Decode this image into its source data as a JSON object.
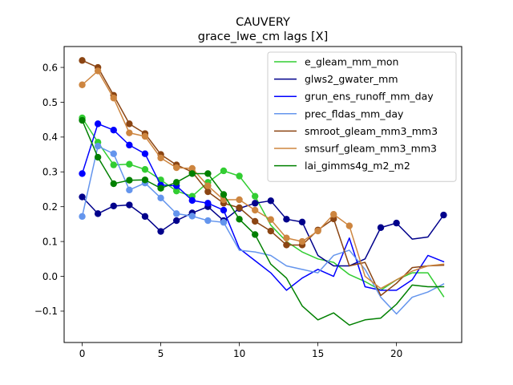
{
  "chart_data": {
    "type": "line",
    "title": "CAUVERY",
    "subtitle": "grace_lwe_cm lags [X]",
    "xlabel": "",
    "ylabel": "",
    "xlim": [
      -1.15,
      24.15
    ],
    "ylim": [
      -0.19,
      0.66
    ],
    "xticks": [
      0,
      5,
      10,
      15,
      20
    ],
    "yticks": [
      -0.1,
      0.0,
      0.1,
      0.2,
      0.3,
      0.4,
      0.5,
      0.6
    ],
    "ytick_labels": [
      "−0.1",
      "0.0",
      "0.1",
      "0.2",
      "0.3",
      "0.4",
      "0.5",
      "0.6"
    ],
    "grid": false,
    "legend_position": "top-right",
    "x": [
      0,
      1,
      2,
      3,
      4,
      5,
      6,
      7,
      8,
      9,
      10,
      11,
      12,
      13,
      14,
      15,
      16,
      17,
      18,
      19,
      20,
      21,
      22,
      23
    ],
    "series": [
      {
        "name": "e_gleam_mm_mon",
        "color": "#32cd32",
        "values": [
          0.455,
          0.385,
          0.32,
          0.322,
          0.307,
          0.277,
          0.245,
          0.23,
          0.27,
          0.303,
          0.288,
          0.23,
          0.147,
          0.1,
          0.07,
          0.05,
          0.04,
          0.005,
          -0.015,
          -0.04,
          -0.01,
          0.01,
          0.01,
          -0.058
        ],
        "markers": 12
      },
      {
        "name": "glws2_gwater_mm",
        "color": "#00008b",
        "values": [
          0.228,
          0.18,
          0.202,
          0.205,
          0.172,
          0.129,
          0.16,
          0.182,
          0.2,
          0.16,
          0.195,
          0.21,
          0.217,
          0.164,
          0.156,
          0.06,
          0.03,
          0.03,
          0.05,
          0.14,
          0.153,
          0.107,
          0.113,
          0.176
        ],
        "markers": [
          0,
          1,
          2,
          3,
          4,
          5,
          6,
          7,
          8,
          9,
          10,
          11,
          12,
          13,
          14,
          19,
          20,
          23
        ]
      },
      {
        "name": "grun_ens_runoff_mm_day",
        "color": "#0000ff",
        "values": [
          0.295,
          0.438,
          0.42,
          0.377,
          0.352,
          0.262,
          0.26,
          0.218,
          0.21,
          0.19,
          0.08,
          0.045,
          0.01,
          -0.04,
          -0.005,
          0.02,
          0.0,
          0.11,
          -0.03,
          -0.04,
          -0.04,
          -0.01,
          0.06,
          0.042
        ],
        "markers": 10
      },
      {
        "name": "prec_fldas_mm_day",
        "color": "#6495ed",
        "values": [
          0.172,
          0.374,
          0.352,
          0.248,
          0.268,
          0.225,
          0.18,
          0.173,
          0.16,
          0.155,
          0.075,
          0.07,
          0.06,
          0.03,
          0.02,
          0.01,
          0.06,
          0.075,
          0.02,
          -0.06,
          -0.108,
          -0.06,
          -0.045,
          -0.022
        ],
        "markers": 10
      },
      {
        "name": "smroot_gleam_mm3_mm3",
        "color": "#8b4513",
        "values": [
          0.62,
          0.6,
          0.52,
          0.438,
          0.41,
          0.35,
          0.32,
          0.3,
          0.243,
          0.21,
          0.197,
          0.158,
          0.13,
          0.09,
          0.09,
          0.133,
          0.165,
          0.03,
          0.04,
          -0.055,
          -0.02,
          0.025,
          0.03,
          0.032
        ],
        "markers": 17
      },
      {
        "name": "smsurf_gleam_mm3_mm3",
        "color": "#cd853f",
        "values": [
          0.55,
          0.59,
          0.512,
          0.412,
          0.402,
          0.34,
          0.312,
          0.31,
          0.26,
          0.22,
          0.22,
          0.19,
          0.163,
          0.11,
          0.1,
          0.13,
          0.178,
          0.145,
          0.0,
          -0.035,
          -0.01,
          0.015,
          0.03,
          0.035
        ],
        "markers": 18
      },
      {
        "name": "lai_gimms4g_m2_m2",
        "color": "#008000",
        "values": [
          0.448,
          0.342,
          0.266,
          0.276,
          0.277,
          0.253,
          0.27,
          0.295,
          0.295,
          0.235,
          0.164,
          0.12,
          0.035,
          -0.005,
          -0.085,
          -0.125,
          -0.105,
          -0.14,
          -0.125,
          -0.12,
          -0.08,
          -0.025,
          -0.03,
          -0.03
        ],
        "markers": 12
      }
    ]
  }
}
